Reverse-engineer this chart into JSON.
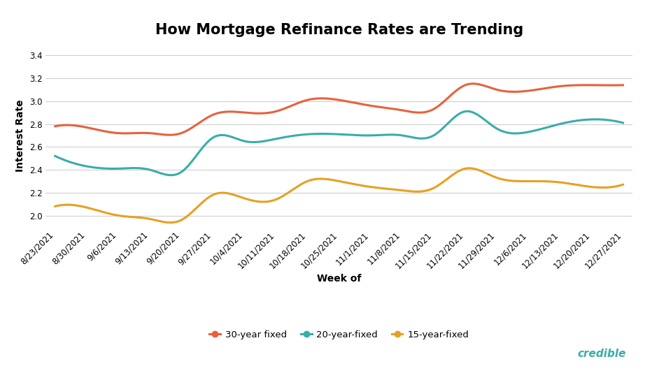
{
  "title": "How Mortgage Refinance Rates are Trending",
  "xlabel": "Week of",
  "ylabel": "Interest Rate",
  "x_labels": [
    "8/23/2021",
    "8/30/2021",
    "9/6/2021",
    "9/13/2021",
    "9/20/2021",
    "9/27/2021",
    "10/4/2021",
    "10/11/2021",
    "10/18/2021",
    "10/25/2021",
    "11/1/2021",
    "11/8/2021",
    "11/15/2021",
    "11/22/2021",
    "11/29/2021",
    "12/6/2021",
    "12/13/2021",
    "12/20/2021",
    "12/27/2021"
  ],
  "series_30yr": [
    2.78,
    2.77,
    2.72,
    2.72,
    2.72,
    2.88,
    2.9,
    2.91,
    3.01,
    3.01,
    2.96,
    2.92,
    2.93,
    3.14,
    3.1,
    3.09,
    3.13,
    3.14,
    3.14
  ],
  "series_20yr": [
    2.52,
    2.43,
    2.41,
    2.4,
    2.38,
    2.68,
    2.65,
    2.67,
    2.71,
    2.71,
    2.7,
    2.7,
    2.7,
    2.91,
    2.76,
    2.73,
    2.8,
    2.84,
    2.81
  ],
  "series_15yr": [
    2.08,
    2.07,
    2.0,
    1.97,
    1.96,
    2.18,
    2.15,
    2.14,
    2.3,
    2.3,
    2.25,
    2.22,
    2.24,
    2.41,
    2.33,
    2.3,
    2.29,
    2.25,
    2.27
  ],
  "color_30yr": "#E8613C",
  "color_20yr": "#3AADA8",
  "color_15yr": "#E8A020",
  "ylim": [
    1.9,
    3.5
  ],
  "yticks": [
    2.0,
    2.2,
    2.4,
    2.6,
    2.8,
    3.0,
    3.2,
    3.4
  ],
  "legend_labels": [
    "30-year fixed",
    "20-year-fixed",
    "15-year-fixed"
  ],
  "background_color": "#ffffff",
  "grid_color": "#d0d0d0",
  "title_fontsize": 15,
  "label_fontsize": 10,
  "tick_fontsize": 8.5,
  "legend_fontsize": 9.5,
  "line_width": 2.2,
  "credible_color": "#3AADA8",
  "credible_text": "credible"
}
